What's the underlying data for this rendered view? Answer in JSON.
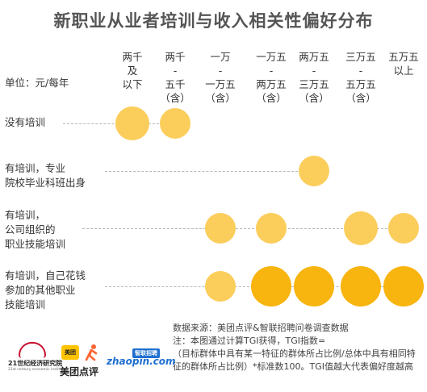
{
  "title": "新职业从业者培训与收入相关性偏好分布",
  "unit_label": "单位：元/每年",
  "colors": {
    "low": "#fbcd5b",
    "high": "#f8b40f",
    "grid": "#b8b8b8"
  },
  "chart_data": {
    "type": "bubble",
    "title": "新职业从业者培训与收入相关性偏好分布",
    "unit": "元/每年",
    "columns": [
      "两千\n及\n以下",
      "两千\n-\n五千\n（含）",
      "一万\n-\n一万五\n（含）",
      "一万五\n-\n两万五\n（含）",
      "两万五\n-\n三万五\n（含）",
      "三万五\n-\n五万五\n（含）",
      "五万五\n以上"
    ],
    "rows": [
      {
        "label": "没有培训",
        "bubbles": [
          {
            "col": 0,
            "level": "medium"
          },
          {
            "col": 1,
            "level": "small"
          }
        ]
      },
      {
        "label": "有培训，专业\n院校毕业科班出身",
        "bubbles": [
          {
            "col": 4,
            "level": "small"
          }
        ]
      },
      {
        "label": "有培训，\n公司组织的\n职业技能培训",
        "bubbles": [
          {
            "col": 2,
            "level": "small"
          },
          {
            "col": 3,
            "level": "small"
          },
          {
            "col": 5,
            "level": "medium"
          },
          {
            "col": 6,
            "level": "small"
          }
        ]
      },
      {
        "label": "有培训，自己花钱\n参加的其他职业\n技能培训",
        "bubbles": [
          {
            "col": 2,
            "level": "small"
          },
          {
            "col": 3,
            "level": "large"
          },
          {
            "col": 4,
            "level": "large"
          },
          {
            "col": 5,
            "level": "large"
          },
          {
            "col": 6,
            "level": "large"
          }
        ]
      }
    ]
  },
  "footer": {
    "source": "数据来源：美团点评&智联招聘问卷调查数据",
    "note_1": "注：本图通过计算TGI获得，TGI指数=",
    "note_2": "（目标群体中具有某一特征的群体所占比例/总体中具有相同特征的群体所占比例）*标准数100。TGI值越大代表偏好度越高"
  },
  "logos": {
    "logo_21": {
      "name": "21世纪经济研究院",
      "sub": "21st century economic institute"
    },
    "logo_meituan": {
      "box": "美团",
      "name": "美团点评"
    },
    "logo_zhilian": {
      "badge": "智联招聘",
      "name": "zhaopin.com"
    }
  }
}
